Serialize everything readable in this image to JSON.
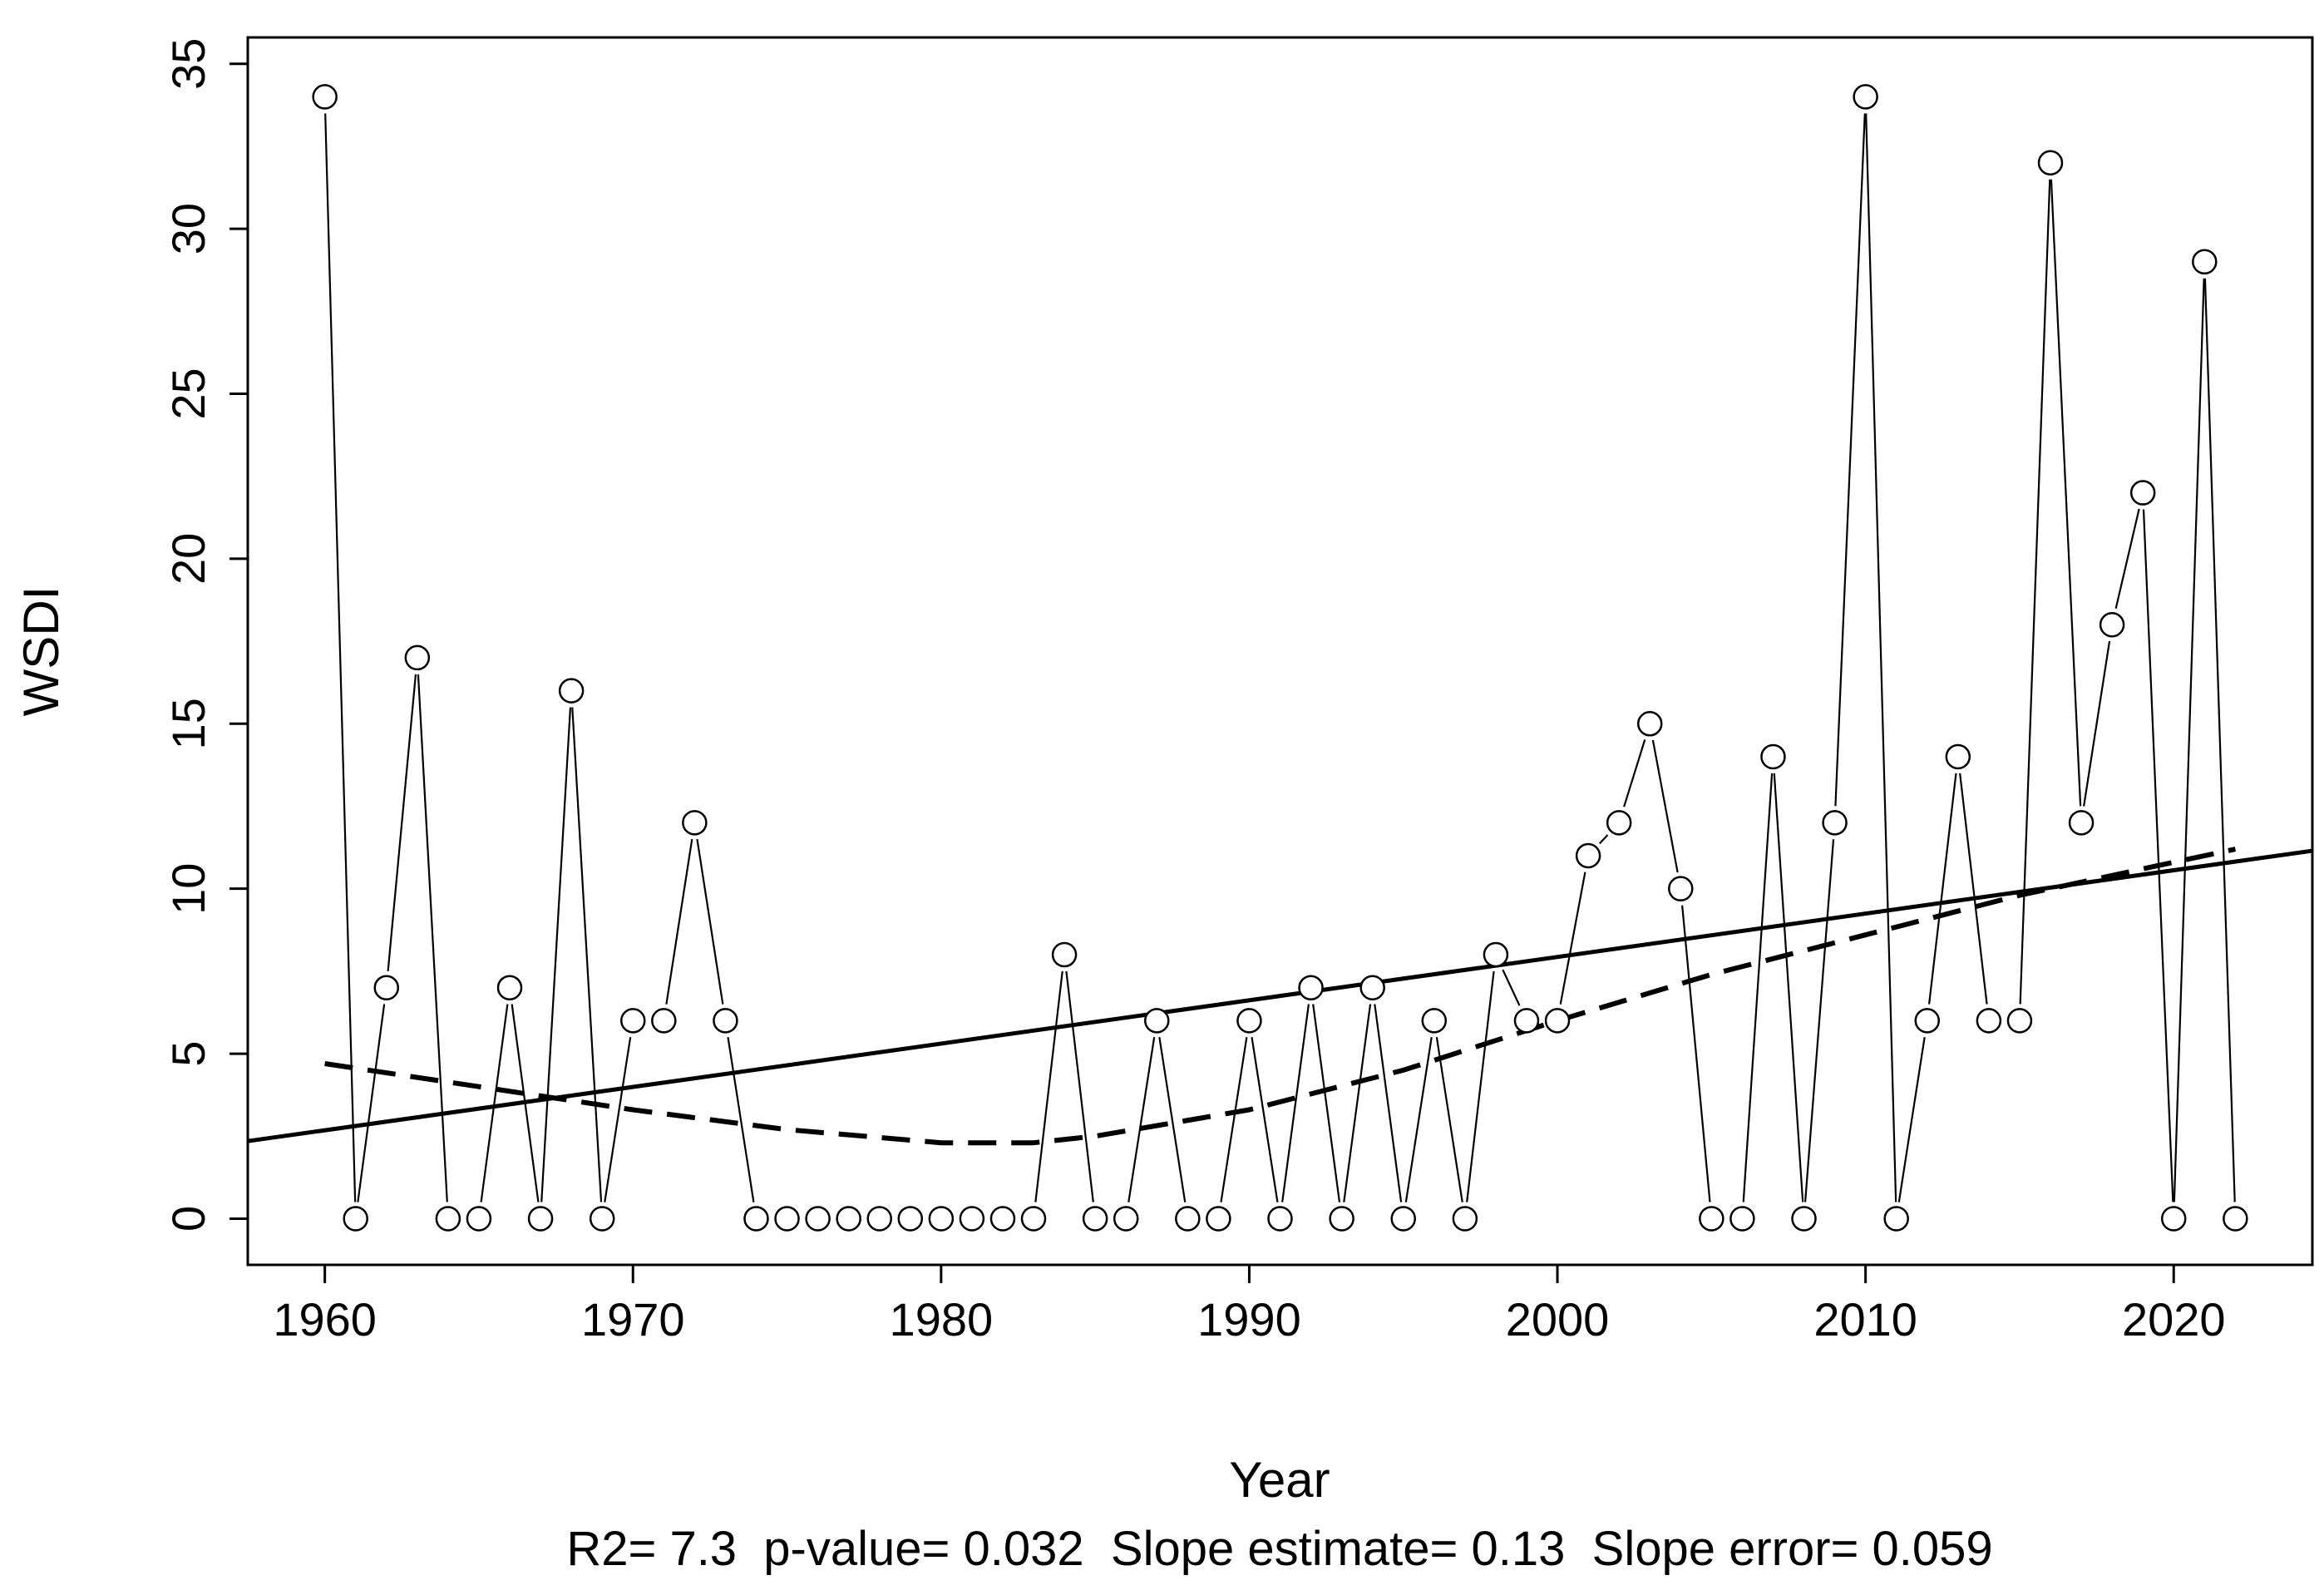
{
  "chart_data": {
    "type": "line",
    "title": "",
    "xlabel": "Year",
    "ylabel": "WSDI",
    "xlim": [
      1957.5,
      2024.5
    ],
    "ylim": [
      -1.4,
      35.8
    ],
    "x_ticks": [
      1960,
      1970,
      1980,
      1990,
      2000,
      2010,
      2020
    ],
    "y_ticks": [
      0,
      5,
      10,
      15,
      20,
      25,
      30,
      35
    ],
    "grid": false,
    "legend": "none",
    "stats_line": "R2= 7.3  p-value= 0.032  Slope estimate= 0.13  Slope error= 0.059",
    "series": [
      {
        "style": "points-with-line",
        "x": [
          1960,
          1961,
          1962,
          1963,
          1964,
          1965,
          1966,
          1967,
          1968,
          1969,
          1970,
          1971,
          1972,
          1973,
          1974,
          1975,
          1976,
          1977,
          1978,
          1979,
          1980,
          1981,
          1982,
          1983,
          1984,
          1985,
          1986,
          1987,
          1988,
          1989,
          1990,
          1991,
          1992,
          1993,
          1994,
          1995,
          1996,
          1997,
          1998,
          1999,
          2000,
          2001,
          2002,
          2003,
          2004,
          2005,
          2006,
          2007,
          2008,
          2009,
          2010,
          2011,
          2012,
          2013,
          2014,
          2015,
          2016,
          2017,
          2018,
          2019,
          2020,
          2021,
          2022
        ],
        "y": [
          34,
          0,
          7,
          17,
          0,
          0,
          7,
          0,
          16,
          0,
          6,
          6,
          12,
          6,
          0,
          0,
          0,
          0,
          0,
          0,
          0,
          0,
          0,
          0,
          8,
          0,
          0,
          6,
          0,
          0,
          6,
          0,
          7,
          0,
          7,
          0,
          6,
          0,
          8,
          6,
          6,
          11,
          12,
          15,
          10,
          0,
          0,
          14,
          0,
          12,
          34,
          0,
          6,
          14,
          6,
          6,
          32,
          12,
          18,
          22,
          0,
          29,
          0
        ]
      },
      {
        "style": "linear-trend",
        "x": [
          1957.5,
          2024.5
        ],
        "y": [
          2.35,
          11.15
        ]
      },
      {
        "style": "smoothed-dashed",
        "x": [
          1960,
          1965,
          1970,
          1975,
          1980,
          1983,
          1985,
          1990,
          1995,
          2000,
          2005,
          2010,
          2015,
          2020,
          2022
        ],
        "y": [
          4.7,
          4.0,
          3.3,
          2.7,
          2.3,
          2.3,
          2.5,
          3.3,
          4.5,
          6.0,
          7.4,
          8.6,
          9.8,
          10.8,
          11.2
        ]
      }
    ]
  }
}
